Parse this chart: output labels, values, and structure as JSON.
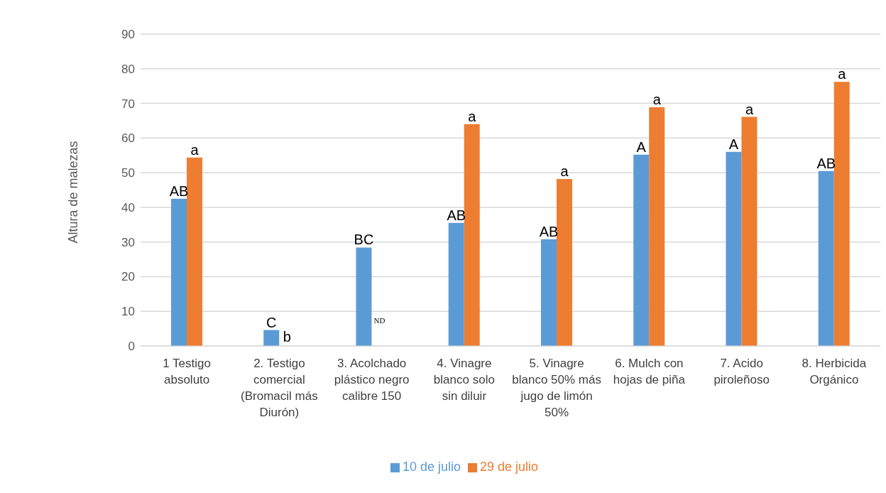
{
  "chart_data": {
    "type": "bar",
    "ylabel": "Altura de malezas",
    "categories": [
      "1 Testigo absoluto",
      "2. Testigo comercial (Bromacil más Diurón)",
      "3. Acolchado plástico negro calibre 150",
      "4. Vinagre blanco solo sin diluir",
      "5. Vinagre blanco 50% más jugo de limón 50%",
      "6. Mulch con hojas de piña",
      "7. Acido piroleñoso",
      "8. Herbicida Orgánico"
    ],
    "series": [
      {
        "name": "10 de julio",
        "color": "#5b9bd5",
        "values": [
          42.5,
          4.6,
          28.4,
          35.5,
          30.8,
          55.2,
          56,
          50.5
        ],
        "value_labels": [
          "AB",
          "C",
          "BC",
          "AB",
          "AB",
          "A",
          "A",
          "AB"
        ]
      },
      {
        "name": "29 de julio",
        "color": "#ed7d31",
        "values": [
          54.4,
          0,
          null,
          64,
          48.2,
          68.9,
          66.1,
          76.2
        ],
        "value_labels": [
          "a",
          "b",
          "ND",
          "a",
          "a",
          "a",
          "a",
          "a"
        ]
      }
    ],
    "ylim": [
      0,
      90
    ],
    "yticks": [
      0,
      10,
      20,
      30,
      40,
      50,
      60,
      70,
      80,
      90
    ],
    "grid": "y",
    "legend": "bottom"
  }
}
